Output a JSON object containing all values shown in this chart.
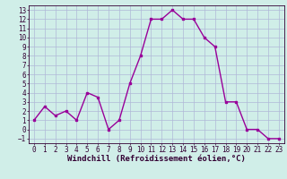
{
  "x": [
    0,
    1,
    2,
    3,
    4,
    5,
    6,
    7,
    8,
    9,
    10,
    11,
    12,
    13,
    14,
    15,
    16,
    17,
    18,
    19,
    20,
    21,
    22,
    23
  ],
  "y": [
    1,
    2.5,
    1.5,
    2,
    1,
    4,
    3.5,
    0,
    1,
    5,
    8,
    12,
    12,
    13,
    12,
    12,
    10,
    9,
    3,
    3,
    0,
    0,
    -1,
    -1
  ],
  "line_color": "#990099",
  "marker": "s",
  "marker_size": 2,
  "bg_color": "#d0eee8",
  "grid_color": "#b0b8d8",
  "xlabel": "Windchill (Refroidissement éolien,°C)",
  "xlabel_fontsize": 6.5,
  "ylim": [
    -1.5,
    13.5
  ],
  "xlim": [
    -0.5,
    23.5
  ],
  "yticks": [
    -1,
    0,
    1,
    2,
    3,
    4,
    5,
    6,
    7,
    8,
    9,
    10,
    11,
    12,
    13
  ],
  "xticks": [
    0,
    1,
    2,
    3,
    4,
    5,
    6,
    7,
    8,
    9,
    10,
    11,
    12,
    13,
    14,
    15,
    16,
    17,
    18,
    19,
    20,
    21,
    22,
    23
  ],
  "tick_fontsize": 5.5,
  "linewidth": 1.0,
  "axis_label_color": "#330033",
  "spine_color": "#330033"
}
